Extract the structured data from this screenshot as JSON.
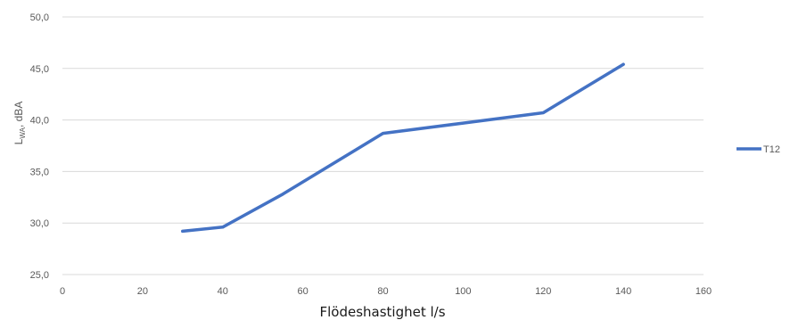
{
  "chart_data": {
    "type": "line",
    "title": "",
    "xlabel": "Flödeshastighet l/s",
    "ylabel": {
      "main": "L",
      "sub": "WA",
      "rest": ", dBA"
    },
    "xlim": [
      0,
      160
    ],
    "ylim": [
      25,
      50
    ],
    "x_ticks": [
      0,
      20,
      40,
      60,
      80,
      100,
      120,
      140,
      160
    ],
    "y_ticks": [
      25,
      30,
      35,
      40,
      45,
      50
    ],
    "y_tick_labels": [
      "25,0",
      "30,0",
      "35,0",
      "40,0",
      "45,0",
      "50,0"
    ],
    "x_tick_labels": [
      "0",
      "20",
      "40",
      "60",
      "80",
      "100",
      "120",
      "140",
      "160"
    ],
    "grid": "horizontal",
    "legend": "right",
    "series": [
      {
        "name": "T12",
        "color": "#4472C4",
        "x": [
          30,
          40,
          55,
          80,
          100,
          120,
          140
        ],
        "y": [
          29.2,
          29.6,
          32.8,
          38.7,
          39.7,
          40.7,
          45.4
        ]
      }
    ]
  }
}
